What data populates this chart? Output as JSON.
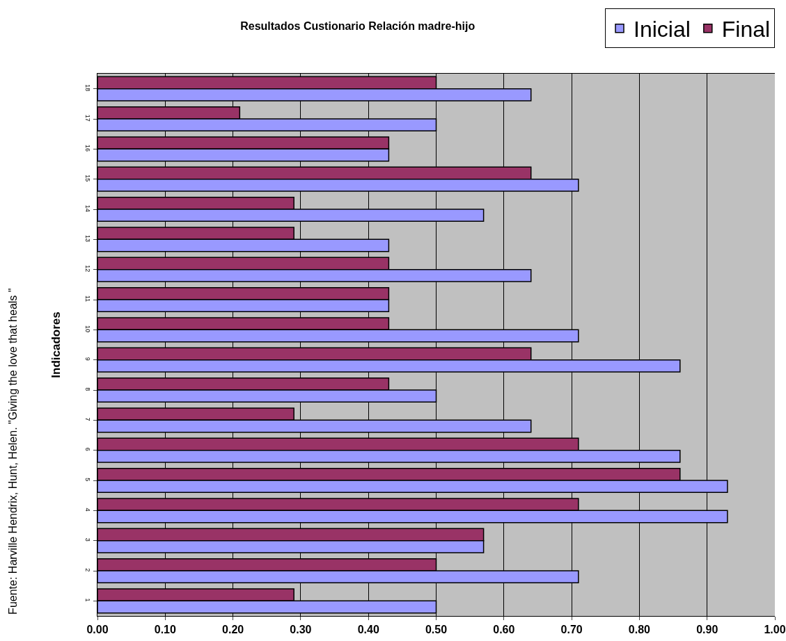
{
  "chart_data": {
    "type": "bar",
    "orientation": "horizontal",
    "title": "Resultados Custionario Relación madre-hijo",
    "ylabel": "Indicadores",
    "annotations": [
      "Fuente: Harville Hendrix, Hunt, Helen. \"Giving the love that heals \""
    ],
    "categories": [
      "18",
      "17",
      "16",
      "15",
      "14",
      "13",
      "12",
      "11",
      "10",
      "9",
      "8",
      "7",
      "6",
      "5",
      "4",
      "3",
      "2",
      "1"
    ],
    "series": [
      {
        "name": "Inicial",
        "color": "#9999ff",
        "values": [
          0.64,
          0.5,
          0.43,
          0.71,
          0.57,
          0.43,
          0.64,
          0.43,
          0.71,
          0.86,
          0.5,
          0.64,
          0.86,
          0.93,
          0.93,
          0.57,
          0.71,
          0.5
        ]
      },
      {
        "name": "Final",
        "color": "#993366",
        "values": [
          0.5,
          0.21,
          0.43,
          0.64,
          0.29,
          0.29,
          0.43,
          0.43,
          0.43,
          0.64,
          0.43,
          0.29,
          0.71,
          0.86,
          0.71,
          0.57,
          0.5,
          0.29
        ]
      }
    ],
    "xlim": [
      0,
      1
    ],
    "xticks": [
      {
        "value": 0,
        "label": "0.00"
      },
      {
        "value": 0.1,
        "label": "0.10"
      },
      {
        "value": 0.2,
        "label": "0.20"
      },
      {
        "value": 0.3,
        "label": "0.30"
      },
      {
        "value": 0.4,
        "label": "0.40"
      },
      {
        "value": 0.5,
        "label": "0.50"
      },
      {
        "value": 0.6,
        "label": "0.60"
      },
      {
        "value": 0.7,
        "label": "0.70"
      },
      {
        "value": 0.8,
        "label": "0.80"
      },
      {
        "value": 0.9,
        "label": "0.90"
      },
      {
        "value": 1,
        "label": "1.00"
      }
    ],
    "grid": "x",
    "legend": "top right"
  }
}
